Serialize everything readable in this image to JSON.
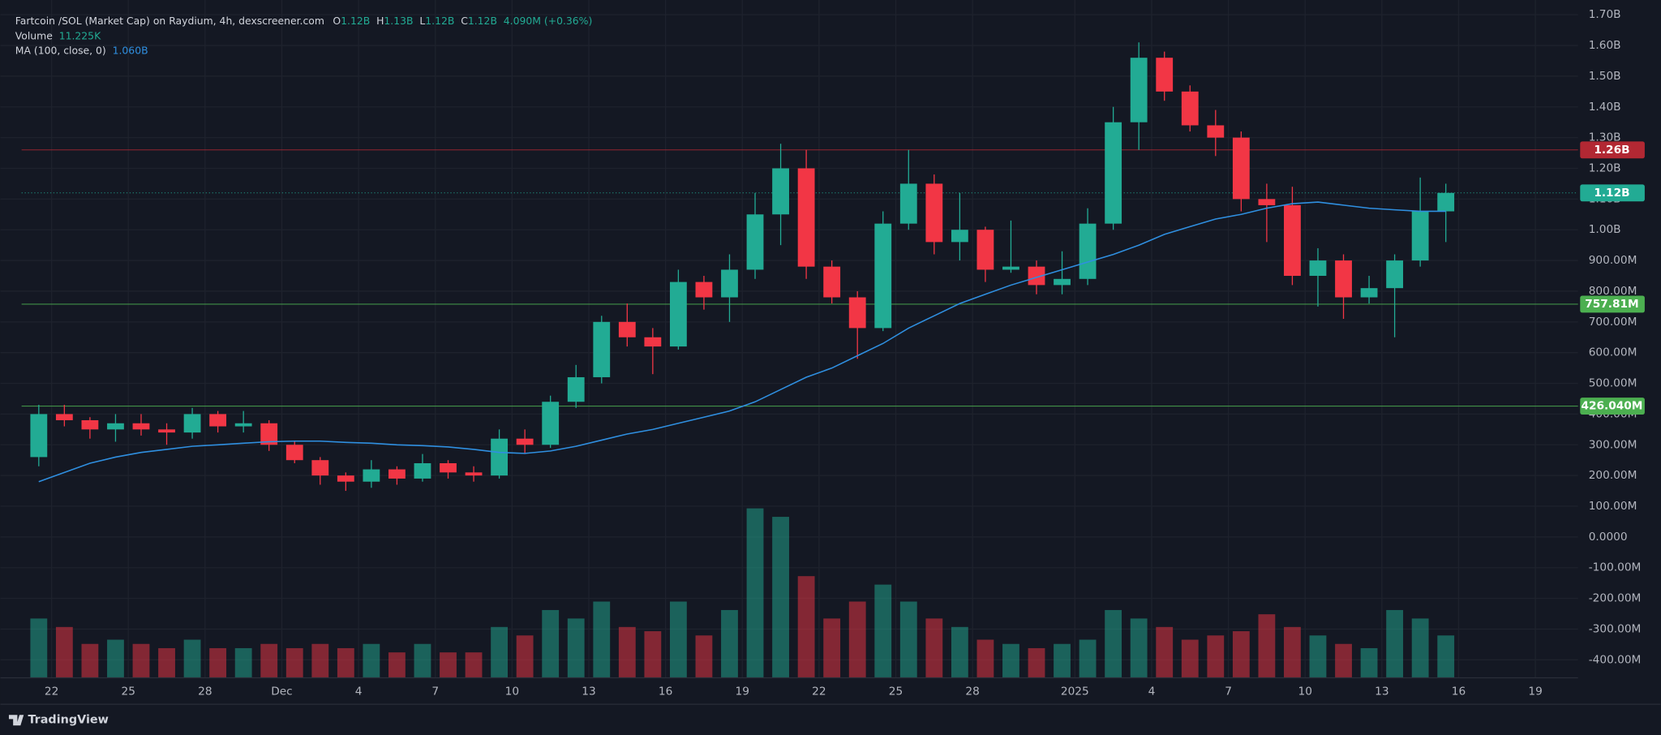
{
  "chart_data": {
    "type": "candlestick",
    "legend": {
      "symbol": "Fartcoin /SOL (Market Cap) on Raydium, 4h, dexscreener.com",
      "ohlc": [
        {
          "key": "O",
          "value": "1.12B"
        },
        {
          "key": "H",
          "value": "1.13B"
        },
        {
          "key": "L",
          "value": "1.12B"
        },
        {
          "key": "C",
          "value": "1.12B"
        }
      ],
      "change": "4.090M (+0.36%)",
      "volume_label": "Volume",
      "volume_value": "11.225K",
      "ma_label": "MA (100, close, 0)",
      "ma_value": "1.060B"
    },
    "brand": "TradingView",
    "up_color": "#22ab94",
    "down_color": "#f23645",
    "grid": true,
    "x": [
      "2024-11-21",
      "2024-11-22",
      "2024-11-23",
      "2024-11-24",
      "2024-11-25",
      "2024-11-26",
      "2024-11-27",
      "2024-11-28",
      "2024-11-29",
      "2024-11-30",
      "2024-12-01",
      "2024-12-02",
      "2024-12-03",
      "2024-12-04",
      "2024-12-05",
      "2024-12-06",
      "2024-12-07",
      "2024-12-08",
      "2024-12-09",
      "2024-12-10",
      "2024-12-11",
      "2024-12-12",
      "2024-12-13",
      "2024-12-14",
      "2024-12-15",
      "2024-12-16",
      "2024-12-17",
      "2024-12-18",
      "2024-12-19",
      "2024-12-20",
      "2024-12-21",
      "2024-12-22",
      "2024-12-23",
      "2024-12-24",
      "2024-12-25",
      "2024-12-26",
      "2024-12-27",
      "2024-12-28",
      "2024-12-29",
      "2024-12-30",
      "2024-12-31",
      "2025-01-01",
      "2025-01-02",
      "2025-01-03",
      "2025-01-04",
      "2025-01-05",
      "2025-01-06",
      "2025-01-07",
      "2025-01-08",
      "2025-01-09",
      "2025-01-10",
      "2025-01-11",
      "2025-01-12",
      "2025-01-13",
      "2025-01-14",
      "2025-01-15"
    ],
    "open": [
      260,
      400,
      380,
      350,
      370,
      350,
      340,
      400,
      360,
      370,
      300,
      250,
      200,
      180,
      220,
      190,
      240,
      210,
      200,
      320,
      300,
      440,
      520,
      700,
      650,
      620,
      830,
      780,
      870,
      1050,
      1200,
      880,
      780,
      680,
      1020,
      1150,
      960,
      1000,
      870,
      880,
      820,
      840,
      1020,
      1350,
      1560,
      1450,
      1340,
      1300,
      1100,
      1080,
      850,
      900,
      780,
      810,
      900,
      1060
    ],
    "high": [
      430,
      430,
      390,
      400,
      400,
      370,
      420,
      410,
      410,
      380,
      310,
      260,
      210,
      250,
      230,
      270,
      250,
      230,
      350,
      350,
      460,
      560,
      720,
      760,
      680,
      870,
      850,
      920,
      1120,
      1280,
      1260,
      900,
      800,
      1060,
      1260,
      1180,
      1120,
      1010,
      1030,
      900,
      930,
      1070,
      1400,
      1610,
      1580,
      1470,
      1390,
      1320,
      1150,
      1140,
      940,
      920,
      850,
      920,
      1170,
      1150
    ],
    "low": [
      230,
      360,
      320,
      310,
      330,
      300,
      320,
      340,
      340,
      280,
      240,
      170,
      150,
      160,
      170,
      180,
      190,
      180,
      190,
      270,
      290,
      420,
      500,
      620,
      530,
      610,
      740,
      700,
      840,
      950,
      840,
      760,
      580,
      670,
      1000,
      920,
      900,
      830,
      860,
      790,
      790,
      820,
      1000,
      1260,
      1420,
      1320,
      1240,
      1060,
      960,
      820,
      750,
      710,
      760,
      650,
      880,
      960
    ],
    "close": [
      400,
      380,
      350,
      370,
      350,
      340,
      400,
      360,
      370,
      300,
      250,
      200,
      180,
      220,
      190,
      240,
      210,
      200,
      320,
      300,
      440,
      520,
      700,
      650,
      620,
      830,
      780,
      870,
      1050,
      1200,
      880,
      780,
      680,
      1020,
      1150,
      960,
      1000,
      870,
      880,
      820,
      840,
      1020,
      1350,
      1560,
      1450,
      1340,
      1300,
      1100,
      1080,
      850,
      900,
      780,
      810,
      900,
      1060,
      1120
    ],
    "volume": [
      70,
      60,
      40,
      45,
      40,
      35,
      45,
      35,
      35,
      40,
      35,
      40,
      35,
      40,
      30,
      40,
      30,
      30,
      60,
      50,
      80,
      70,
      90,
      60,
      55,
      90,
      50,
      80,
      200,
      190,
      120,
      70,
      90,
      110,
      90,
      70,
      60,
      45,
      40,
      35,
      40,
      45,
      80,
      70,
      60,
      45,
      50,
      55,
      75,
      60,
      50,
      40,
      35,
      80,
      70,
      50
    ],
    "ma": {
      "name": "MA (100, close, 0)",
      "color": "#2f8fe0",
      "values": [
        180,
        210,
        240,
        260,
        275,
        285,
        295,
        300,
        305,
        310,
        312,
        312,
        308,
        305,
        300,
        297,
        293,
        285,
        275,
        272,
        280,
        295,
        315,
        335,
        350,
        370,
        390,
        410,
        440,
        480,
        520,
        550,
        590,
        630,
        680,
        720,
        760,
        790,
        820,
        845,
        870,
        895,
        920,
        950,
        985,
        1010,
        1035,
        1050,
        1070,
        1085,
        1090,
        1080,
        1070,
        1065,
        1060,
        1060
      ]
    },
    "price_lines": [
      {
        "value": 1260,
        "label": "1.26B",
        "color": "#b22833"
      },
      {
        "value": 1120,
        "label": "1.12B",
        "color": "#22ab94"
      },
      {
        "value": 757.81,
        "label": "757.81M",
        "color": "#4caf50"
      },
      {
        "value": 426.04,
        "label": "426.040M",
        "color": "#4caf50"
      }
    ],
    "ylim": [
      -458.6,
      1748
    ],
    "yticks": [
      {
        "value": 1700,
        "label": "1.70B"
      },
      {
        "value": 1600,
        "label": "1.60B"
      },
      {
        "value": 1500,
        "label": "1.50B"
      },
      {
        "value": 1400,
        "label": "1.40B"
      },
      {
        "value": 1300,
        "label": "1.30B"
      },
      {
        "value": 1200,
        "label": "1.20B"
      },
      {
        "value": 1100,
        "label": "1.10B"
      },
      {
        "value": 1000,
        "label": "1.00B"
      },
      {
        "value": 900,
        "label": "900.00M"
      },
      {
        "value": 800,
        "label": "800.00M"
      },
      {
        "value": 700,
        "label": "700.00M"
      },
      {
        "value": 600,
        "label": "600.00M"
      },
      {
        "value": 500,
        "label": "500.00M"
      },
      {
        "value": 400,
        "label": "400.00M"
      },
      {
        "value": 300,
        "label": "300.00M"
      },
      {
        "value": 200,
        "label": "200.00M"
      },
      {
        "value": 100,
        "label": "100.00M"
      },
      {
        "value": 0,
        "label": "0.0000"
      },
      {
        "value": -100,
        "label": "-100.00M"
      },
      {
        "value": -200,
        "label": "-200.00M"
      },
      {
        "value": -300,
        "label": "-300.00M"
      },
      {
        "value": -400,
        "label": "-400.00M"
      }
    ],
    "xlim": [
      "2024-11-20",
      "2025-01-20T16:00"
    ],
    "xticks": [
      {
        "value": "2024-11-22",
        "label": "22"
      },
      {
        "value": "2024-11-25",
        "label": "25"
      },
      {
        "value": "2024-11-28",
        "label": "28"
      },
      {
        "value": "2024-12-01",
        "label": "Dec"
      },
      {
        "value": "2024-12-04",
        "label": "4"
      },
      {
        "value": "2024-12-07",
        "label": "7"
      },
      {
        "value": "2024-12-10",
        "label": "10"
      },
      {
        "value": "2024-12-13",
        "label": "13"
      },
      {
        "value": "2024-12-16",
        "label": "16"
      },
      {
        "value": "2024-12-19",
        "label": "19"
      },
      {
        "value": "2024-12-22",
        "label": "22"
      },
      {
        "value": "2024-12-25",
        "label": "25"
      },
      {
        "value": "2024-12-28",
        "label": "28"
      },
      {
        "value": "2025-01-01",
        "label": "2025"
      },
      {
        "value": "2025-01-04",
        "label": "4"
      },
      {
        "value": "2025-01-07",
        "label": "7"
      },
      {
        "value": "2025-01-10",
        "label": "10"
      },
      {
        "value": "2025-01-13",
        "label": "13"
      },
      {
        "value": "2025-01-16",
        "label": "16"
      },
      {
        "value": "2025-01-19",
        "label": "19"
      }
    ]
  }
}
